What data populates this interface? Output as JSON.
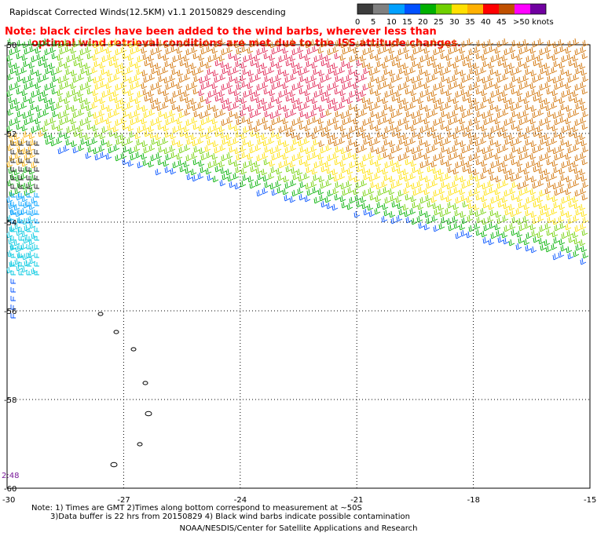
{
  "title": "Rapidscat Corrected Winds(12.5KM) v1.1 20150829 descending",
  "note": {
    "line1": "Note: black circles have been added to the wind barbs, wherever less than",
    "line2": "optimal wind retrieval conditions are met due to the ISS attitude changes."
  },
  "color_scale": {
    "labels": [
      "0",
      "5",
      "10",
      "15",
      "20",
      "25",
      "30",
      "35",
      "40",
      "45",
      ">50 knots"
    ],
    "colors": [
      "#3c3c3c",
      "#808080",
      "#00a0ff",
      "#0050ff",
      "#00b000",
      "#70d000",
      "#ffe000",
      "#ffb000",
      "#ff0000",
      "#c05000",
      "#ff00ff",
      "#7000a0"
    ]
  },
  "axes": {
    "lon_ticks": [
      "-30",
      "-27",
      "-24",
      "-21",
      "-18",
      "-15"
    ],
    "lat_ticks": [
      "-50",
      "-52",
      "-54",
      "-56",
      "-58",
      "-60"
    ]
  },
  "time_label": "2:48",
  "footer": {
    "line1": "Note: 1) Times are GMT 2)Times along bottom correspond to measurement at ~50S",
    "line2": "3)Data buffer is 22 hrs from 20150829 4) Black wind barbs indicate possible contamination"
  },
  "credit": "NOAA/NESDIS/Center for Satellite Applications and Research"
}
